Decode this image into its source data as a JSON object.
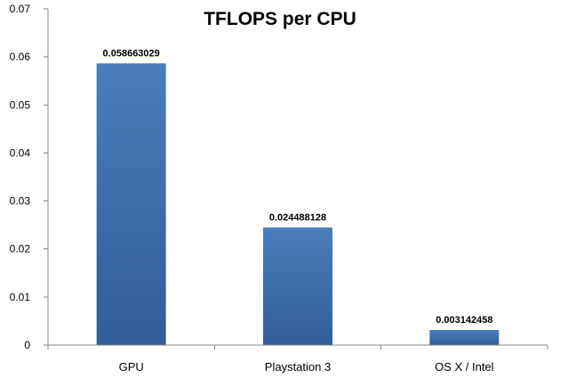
{
  "chart_data": {
    "type": "bar",
    "title": "TFLOPS per CPU",
    "categories": [
      "GPU",
      "Playstation 3",
      "OS X / Intel"
    ],
    "values": [
      0.058663029,
      0.024488128,
      0.003142458
    ],
    "data_labels": [
      "0.058663029",
      "0.024488128",
      "0.003142458"
    ],
    "yticks": [
      "0",
      "0.01",
      "0.02",
      "0.03",
      "0.04",
      "0.05",
      "0.06",
      "0.07"
    ],
    "ylim": [
      0,
      0.07
    ],
    "xlabel": "",
    "ylabel": "",
    "grid": false,
    "legend": "none",
    "bar_color": "#4a7ebb",
    "bar_color_dark": "#2f5d97"
  }
}
